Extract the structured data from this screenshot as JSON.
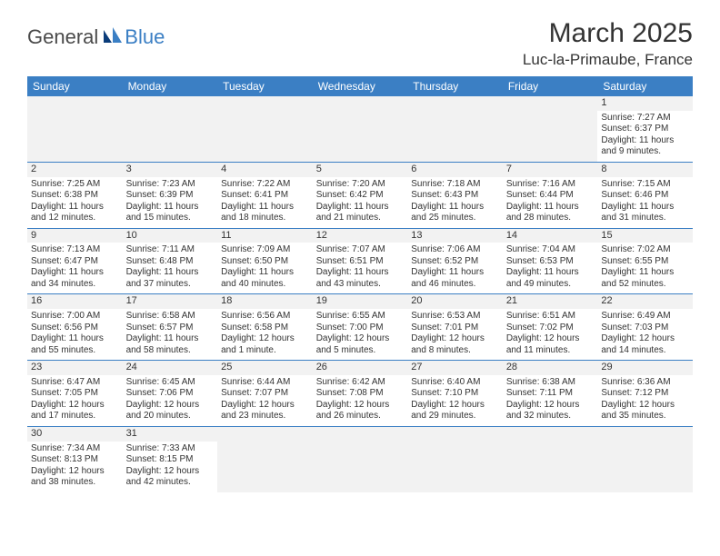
{
  "logo": {
    "general": "General",
    "blue": "Blue"
  },
  "title": "March 2025",
  "location": "Luc-la-Primaube, France",
  "colors": {
    "header_bg": "#3b7fc4",
    "header_text": "#ffffff",
    "cell_text": "#333333",
    "shade_bg": "#f2f2f2",
    "border": "#3b7fc4"
  },
  "day_headers": [
    "Sunday",
    "Monday",
    "Tuesday",
    "Wednesday",
    "Thursday",
    "Friday",
    "Saturday"
  ],
  "weeks": [
    [
      null,
      null,
      null,
      null,
      null,
      null,
      {
        "n": "1",
        "sunrise": "7:27 AM",
        "sunset": "6:37 PM",
        "daylight": "11 hours and 9 minutes."
      }
    ],
    [
      {
        "n": "2",
        "sunrise": "7:25 AM",
        "sunset": "6:38 PM",
        "daylight": "11 hours and 12 minutes."
      },
      {
        "n": "3",
        "sunrise": "7:23 AM",
        "sunset": "6:39 PM",
        "daylight": "11 hours and 15 minutes."
      },
      {
        "n": "4",
        "sunrise": "7:22 AM",
        "sunset": "6:41 PM",
        "daylight": "11 hours and 18 minutes."
      },
      {
        "n": "5",
        "sunrise": "7:20 AM",
        "sunset": "6:42 PM",
        "daylight": "11 hours and 21 minutes."
      },
      {
        "n": "6",
        "sunrise": "7:18 AM",
        "sunset": "6:43 PM",
        "daylight": "11 hours and 25 minutes."
      },
      {
        "n": "7",
        "sunrise": "7:16 AM",
        "sunset": "6:44 PM",
        "daylight": "11 hours and 28 minutes."
      },
      {
        "n": "8",
        "sunrise": "7:15 AM",
        "sunset": "6:46 PM",
        "daylight": "11 hours and 31 minutes."
      }
    ],
    [
      {
        "n": "9",
        "sunrise": "7:13 AM",
        "sunset": "6:47 PM",
        "daylight": "11 hours and 34 minutes."
      },
      {
        "n": "10",
        "sunrise": "7:11 AM",
        "sunset": "6:48 PM",
        "daylight": "11 hours and 37 minutes."
      },
      {
        "n": "11",
        "sunrise": "7:09 AM",
        "sunset": "6:50 PM",
        "daylight": "11 hours and 40 minutes."
      },
      {
        "n": "12",
        "sunrise": "7:07 AM",
        "sunset": "6:51 PM",
        "daylight": "11 hours and 43 minutes."
      },
      {
        "n": "13",
        "sunrise": "7:06 AM",
        "sunset": "6:52 PM",
        "daylight": "11 hours and 46 minutes."
      },
      {
        "n": "14",
        "sunrise": "7:04 AM",
        "sunset": "6:53 PM",
        "daylight": "11 hours and 49 minutes."
      },
      {
        "n": "15",
        "sunrise": "7:02 AM",
        "sunset": "6:55 PM",
        "daylight": "11 hours and 52 minutes."
      }
    ],
    [
      {
        "n": "16",
        "sunrise": "7:00 AM",
        "sunset": "6:56 PM",
        "daylight": "11 hours and 55 minutes."
      },
      {
        "n": "17",
        "sunrise": "6:58 AM",
        "sunset": "6:57 PM",
        "daylight": "11 hours and 58 minutes."
      },
      {
        "n": "18",
        "sunrise": "6:56 AM",
        "sunset": "6:58 PM",
        "daylight": "12 hours and 1 minute."
      },
      {
        "n": "19",
        "sunrise": "6:55 AM",
        "sunset": "7:00 PM",
        "daylight": "12 hours and 5 minutes."
      },
      {
        "n": "20",
        "sunrise": "6:53 AM",
        "sunset": "7:01 PM",
        "daylight": "12 hours and 8 minutes."
      },
      {
        "n": "21",
        "sunrise": "6:51 AM",
        "sunset": "7:02 PM",
        "daylight": "12 hours and 11 minutes."
      },
      {
        "n": "22",
        "sunrise": "6:49 AM",
        "sunset": "7:03 PM",
        "daylight": "12 hours and 14 minutes."
      }
    ],
    [
      {
        "n": "23",
        "sunrise": "6:47 AM",
        "sunset": "7:05 PM",
        "daylight": "12 hours and 17 minutes."
      },
      {
        "n": "24",
        "sunrise": "6:45 AM",
        "sunset": "7:06 PM",
        "daylight": "12 hours and 20 minutes."
      },
      {
        "n": "25",
        "sunrise": "6:44 AM",
        "sunset": "7:07 PM",
        "daylight": "12 hours and 23 minutes."
      },
      {
        "n": "26",
        "sunrise": "6:42 AM",
        "sunset": "7:08 PM",
        "daylight": "12 hours and 26 minutes."
      },
      {
        "n": "27",
        "sunrise": "6:40 AM",
        "sunset": "7:10 PM",
        "daylight": "12 hours and 29 minutes."
      },
      {
        "n": "28",
        "sunrise": "6:38 AM",
        "sunset": "7:11 PM",
        "daylight": "12 hours and 32 minutes."
      },
      {
        "n": "29",
        "sunrise": "6:36 AM",
        "sunset": "7:12 PM",
        "daylight": "12 hours and 35 minutes."
      }
    ],
    [
      {
        "n": "30",
        "sunrise": "7:34 AM",
        "sunset": "8:13 PM",
        "daylight": "12 hours and 38 minutes."
      },
      {
        "n": "31",
        "sunrise": "7:33 AM",
        "sunset": "8:15 PM",
        "daylight": "12 hours and 42 minutes."
      },
      null,
      null,
      null,
      null,
      null
    ]
  ],
  "labels": {
    "sunrise": "Sunrise:",
    "sunset": "Sunset:",
    "daylight": "Daylight:"
  }
}
